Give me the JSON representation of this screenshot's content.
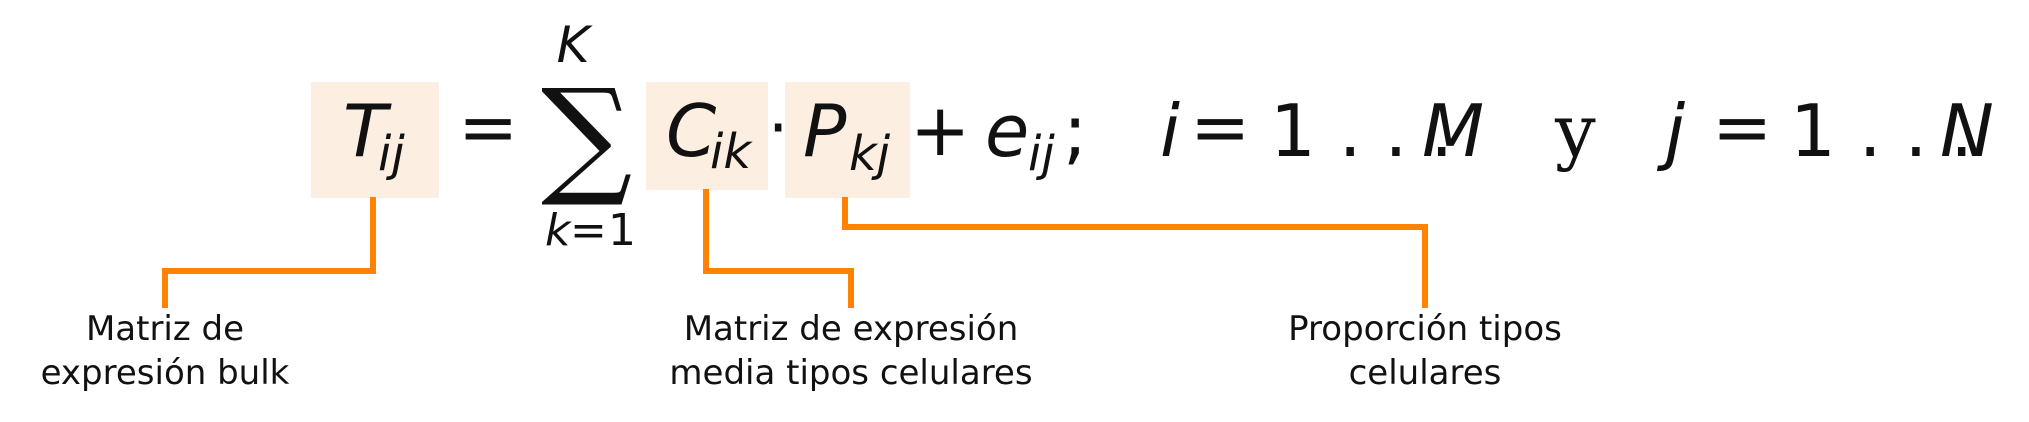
{
  "colors": {
    "highlight": "#fcefe1",
    "connector": "#ff8200",
    "text": "#111111"
  },
  "equation": {
    "T": "T",
    "T_sub": "ij",
    "equals": "=",
    "sum_symbol": "∑",
    "sum_upper": "K",
    "sum_lower_var": "k",
    "sum_lower_eq": "=",
    "sum_lower_num": "1",
    "C": "C",
    "C_sub": "ik",
    "dot": "·",
    "P": "P",
    "P_sub": "kj",
    "plus": "+",
    "e": "e",
    "e_sub": "ij",
    "semicolon": ";",
    "i": "i",
    "i_eq": "=",
    "i_range": "1 . . .",
    "M": "M",
    "conj": "y",
    "j": "j",
    "j_eq": "=",
    "j_range": "1 . . .",
    "N": "N"
  },
  "labels": {
    "bulk_line1": "Matriz de",
    "bulk_line2": "expresión bulk",
    "mean_line1": "Matriz de expresión",
    "mean_line2": "media tipos celulares",
    "prop_line1": "Proporción tipos",
    "prop_line2": "celulares"
  }
}
